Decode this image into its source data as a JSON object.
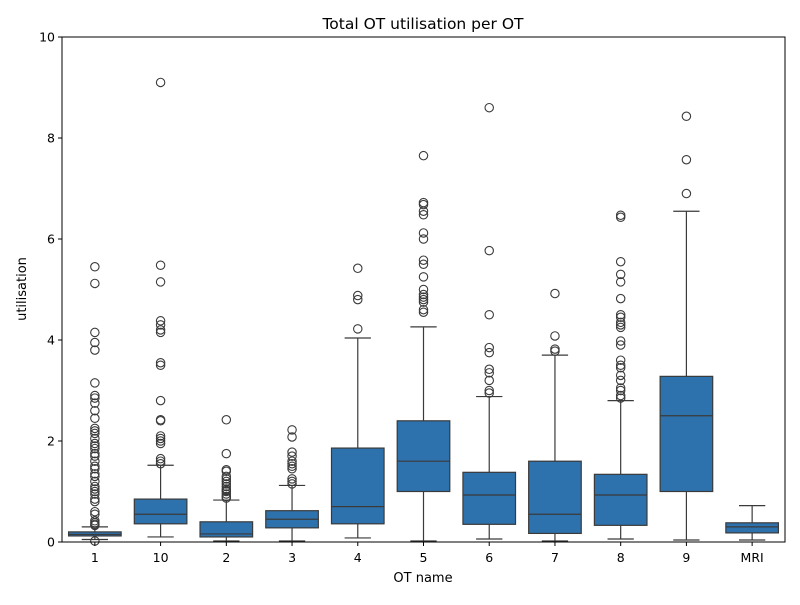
{
  "chart_data": {
    "type": "box",
    "title": "Total OT utilisation per OT",
    "xlabel": "OT name",
    "ylabel": "utilisation",
    "ylim": [
      0,
      10
    ],
    "yticks": [
      0,
      2,
      4,
      6,
      8,
      10
    ],
    "grid": false,
    "legend": "none",
    "colors": {
      "box_fill": "#2e72ad",
      "line": "#3a3a3a"
    },
    "categories": [
      "1",
      "10",
      "2",
      "3",
      "4",
      "5",
      "6",
      "7",
      "8",
      "9",
      "MRI"
    ],
    "boxes": [
      {
        "category": "1",
        "whisker_low": 0.05,
        "q1": 0.12,
        "median": 0.15,
        "q3": 0.2,
        "whisker_high": 0.3,
        "outliers": [
          0.02,
          0.33,
          0.35,
          0.38,
          0.42,
          0.55,
          0.6,
          0.8,
          0.85,
          0.95,
          1.0,
          1.05,
          1.1,
          1.2,
          1.3,
          1.35,
          1.45,
          1.5,
          1.6,
          1.7,
          1.75,
          1.85,
          1.9,
          1.95,
          2.05,
          2.15,
          2.2,
          2.25,
          2.45,
          2.6,
          2.75,
          2.85,
          2.9,
          3.15,
          3.8,
          3.95,
          4.15,
          5.12,
          5.45
        ]
      },
      {
        "category": "10",
        "whisker_low": 0.1,
        "q1": 0.36,
        "median": 0.55,
        "q3": 0.85,
        "whisker_high": 1.52,
        "outliers": [
          1.55,
          1.6,
          1.65,
          1.95,
          2.0,
          2.05,
          2.1,
          2.4,
          2.42,
          2.8,
          3.5,
          3.55,
          4.15,
          4.2,
          4.3,
          4.38,
          5.15,
          5.48,
          9.1
        ]
      },
      {
        "category": "2",
        "whisker_low": 0.02,
        "q1": 0.1,
        "median": 0.16,
        "q3": 0.4,
        "whisker_high": 0.83,
        "outliers": [
          0.87,
          0.9,
          0.95,
          1.0,
          1.02,
          1.05,
          1.1,
          1.15,
          1.2,
          1.25,
          1.3,
          1.4,
          1.43,
          1.75,
          2.42
        ]
      },
      {
        "category": "3",
        "whisker_low": 0.02,
        "q1": 0.28,
        "median": 0.45,
        "q3": 0.62,
        "whisker_high": 1.12,
        "outliers": [
          1.15,
          1.2,
          1.25,
          1.45,
          1.5,
          1.55,
          1.6,
          1.7,
          1.78,
          2.08,
          2.22
        ]
      },
      {
        "category": "4",
        "whisker_low": 0.08,
        "q1": 0.36,
        "median": 0.7,
        "q3": 1.86,
        "whisker_high": 4.04,
        "outliers": [
          4.22,
          4.8,
          4.88,
          5.42
        ]
      },
      {
        "category": "5",
        "whisker_low": 0.02,
        "q1": 1.0,
        "median": 1.6,
        "q3": 2.4,
        "whisker_high": 4.26,
        "outliers": [
          4.55,
          4.6,
          4.75,
          4.8,
          4.85,
          4.9,
          5.0,
          5.25,
          5.5,
          5.58,
          6.0,
          6.12,
          6.48,
          6.55,
          6.68,
          6.72,
          7.65
        ]
      },
      {
        "category": "6",
        "whisker_low": 0.06,
        "q1": 0.35,
        "median": 0.93,
        "q3": 1.38,
        "whisker_high": 2.88,
        "outliers": [
          2.95,
          3.0,
          3.2,
          3.35,
          3.42,
          3.75,
          3.85,
          4.5,
          5.77,
          8.6
        ]
      },
      {
        "category": "7",
        "whisker_low": 0.02,
        "q1": 0.17,
        "median": 0.55,
        "q3": 1.6,
        "whisker_high": 3.7,
        "outliers": [
          3.78,
          3.82,
          4.08,
          4.92
        ]
      },
      {
        "category": "8",
        "whisker_low": 0.06,
        "q1": 0.33,
        "median": 0.93,
        "q3": 1.34,
        "whisker_high": 2.8,
        "outliers": [
          2.85,
          2.9,
          3.0,
          3.05,
          3.2,
          3.3,
          3.45,
          3.5,
          3.6,
          3.9,
          3.98,
          4.25,
          4.3,
          4.35,
          4.45,
          4.5,
          4.82,
          5.15,
          5.3,
          5.55,
          6.43,
          6.47
        ]
      },
      {
        "category": "9",
        "whisker_low": 0.04,
        "q1": 1.0,
        "median": 2.5,
        "q3": 3.28,
        "whisker_high": 6.55,
        "outliers": [
          6.9,
          7.57,
          8.43
        ]
      },
      {
        "category": "MRI",
        "whisker_low": 0.04,
        "q1": 0.18,
        "median": 0.3,
        "q3": 0.38,
        "whisker_high": 0.72,
        "outliers": []
      }
    ]
  }
}
